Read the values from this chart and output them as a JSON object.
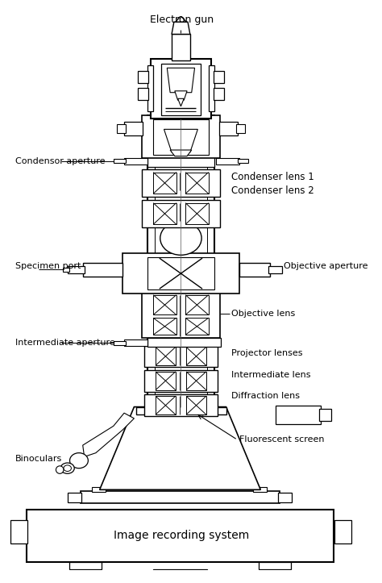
{
  "bg_color": "#ffffff",
  "lc": "#000000",
  "lw": 0.8,
  "fig_width": 4.74,
  "fig_height": 7.23,
  "dpi": 100,
  "labels": {
    "electron_gun": "Electron gun",
    "condensor_aperture": "Condensor aperture",
    "condenser_lens_1": "Condenser lens 1",
    "condenser_lens_2": "Condenser lens 2",
    "specimen_port": "Specimen port",
    "objective_aperture": "Objective aperture",
    "objective_lens": "Objective lens",
    "intermediate_aperture": "Intermediate aperture",
    "diffraction_lens": "Diffraction lens",
    "intermediate_lens": "Intermediate lens",
    "projector_lenses": "Projector lenses",
    "binoculars": "Binoculars",
    "fluorescent_screen": "Fluorescent screen",
    "image_recording": "Image recording system"
  }
}
